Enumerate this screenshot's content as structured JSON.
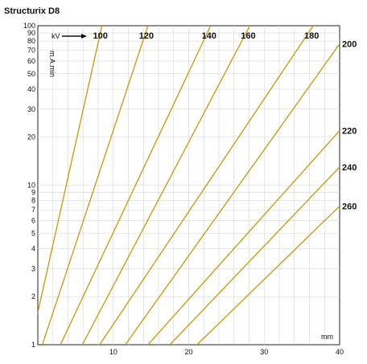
{
  "chart_data": {
    "type": "line",
    "title": "Structurix D8",
    "xlabel": "mm",
    "ylabel": "m.A.min",
    "series_header": "kV",
    "x_scale": "linear",
    "y_scale": "log",
    "xlim": [
      0,
      40
    ],
    "ylim": [
      1,
      100
    ],
    "x_ticks": [
      10,
      20,
      30,
      40
    ],
    "y_ticks": [
      1,
      2,
      3,
      4,
      5,
      6,
      7,
      8,
      9,
      10,
      20,
      30,
      40,
      50,
      60,
      70,
      80,
      90,
      100
    ],
    "grid": true,
    "line_color": "#c8960c",
    "series": [
      {
        "name": "100",
        "points": [
          [
            -0.2,
            1.45
          ],
          [
            8.5,
            100
          ]
        ]
      },
      {
        "name": "120",
        "points": [
          [
            0.6,
            1
          ],
          [
            14.6,
            100
          ]
        ]
      },
      {
        "name": "140",
        "points": [
          [
            3.0,
            1
          ],
          [
            22.9,
            100
          ]
        ]
      },
      {
        "name": "160",
        "points": [
          [
            5.9,
            1
          ],
          [
            28.1,
            100
          ]
        ]
      },
      {
        "name": "180",
        "points": [
          [
            8.2,
            1
          ],
          [
            36.5,
            100
          ]
        ]
      },
      {
        "name": "200",
        "points": [
          [
            11.6,
            1
          ],
          [
            40,
            77
          ]
        ]
      },
      {
        "name": "220",
        "points": [
          [
            14.6,
            1
          ],
          [
            40,
            22
          ]
        ]
      },
      {
        "name": "240",
        "points": [
          [
            17.5,
            1
          ],
          [
            40,
            13
          ]
        ]
      },
      {
        "name": "260",
        "points": [
          [
            21.1,
            1
          ],
          [
            40,
            7.4
          ]
        ]
      }
    ]
  }
}
